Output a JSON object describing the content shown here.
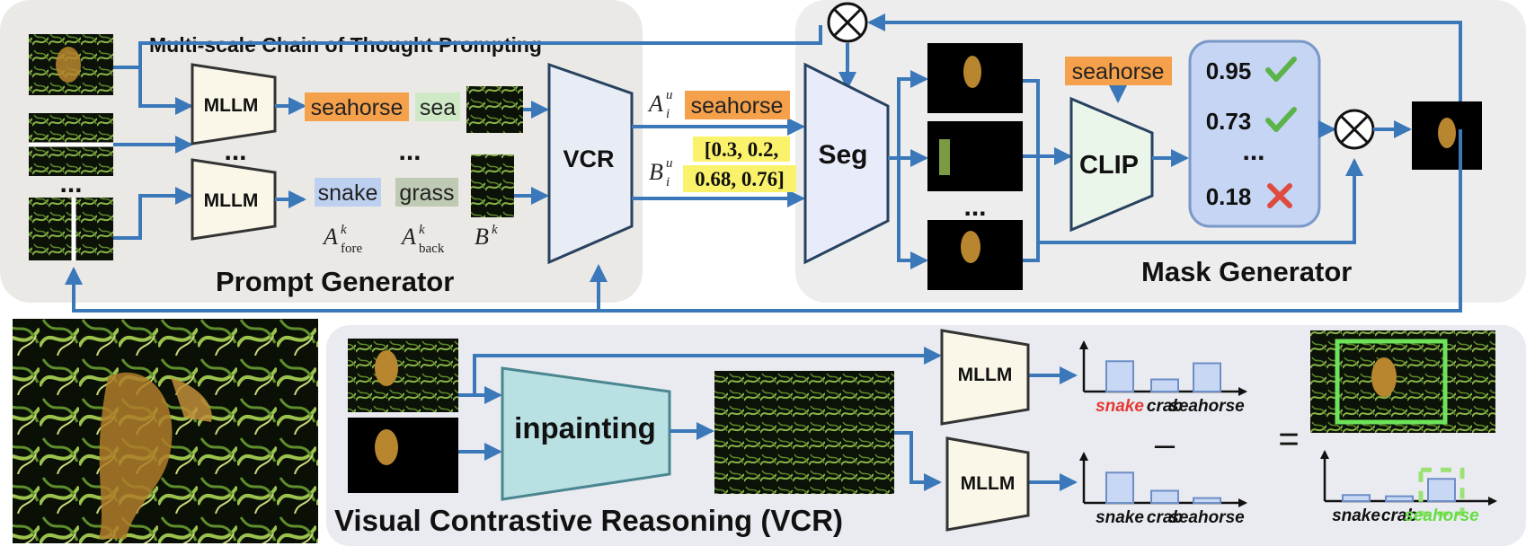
{
  "prompt_generator": {
    "title": "Prompt Generator",
    "caption": "Multi-scale Chain of Thought Prompting",
    "mllm_label": "MLLM",
    "ellipsis": "...",
    "fore_term_1": "seahorse",
    "back_term_1": "sea",
    "fore_term_2": "snake",
    "back_term_2": "grass",
    "legend": {
      "a_sym": "A",
      "a_sup": "k",
      "fore_sub": "fore",
      "back_sub": "back",
      "b_sym": "B",
      "b_sup": "k"
    }
  },
  "vcr_block_label": "VCR",
  "vcr_outputs": {
    "a_sym": "A",
    "a_sup": "u",
    "a_sub": "i",
    "a_value": "seahorse",
    "b_sym": "B",
    "b_sup": "u",
    "b_sub": "i",
    "bbox_line1": "[0.3, 0.2,",
    "bbox_line2": "0.68, 0.76]"
  },
  "mask_generator": {
    "title": "Mask Generator",
    "seg_label": "Seg",
    "clip_label": "CLIP",
    "clip_query": "seahorse",
    "ellipsis": "...",
    "scores": [
      {
        "value": "0.95",
        "verdict": "check"
      },
      {
        "value": "0.73",
        "verdict": "check"
      },
      {
        "value": "0.18",
        "verdict": "cross"
      }
    ]
  },
  "vcr_panel": {
    "title": "Visual Contrastive Reasoning (VCR)",
    "inpainting_label": "inpainting",
    "mllm_label": "MLLM",
    "minus": "–",
    "equals": "=",
    "categories": [
      "snake",
      "crab",
      "seahorse"
    ],
    "chart_top": [
      0.75,
      0.3,
      0.7
    ],
    "chart_bottom": [
      0.75,
      0.3,
      0.12
    ],
    "chart_result": [
      0.15,
      0.12,
      0.55
    ],
    "highlight_colors": {
      "snake": "#e53935",
      "seahorse": "#66dd44"
    }
  },
  "colors": {
    "arrow": "#3b78b9",
    "panel_bg": "#f1f1f2",
    "pg_bg": "#ebe9e6",
    "vcr_bg": "#e9ebf0",
    "orange_chip": "#f5a04a",
    "green_chip": "#cfe8c6",
    "blue_chip": "#bed0ef",
    "gray_chip": "#bfcab4",
    "yellow_chip": "#fbf26c",
    "mllm_fill": "#fbf7e8",
    "seg_fill": "#e8ecfa",
    "clip_fill": "#ebf6ea",
    "inpaint_fill": "#b9e0e2",
    "score_fill": "#c5d5f3",
    "check": "#5cb34a",
    "cross": "#df4b3e"
  }
}
